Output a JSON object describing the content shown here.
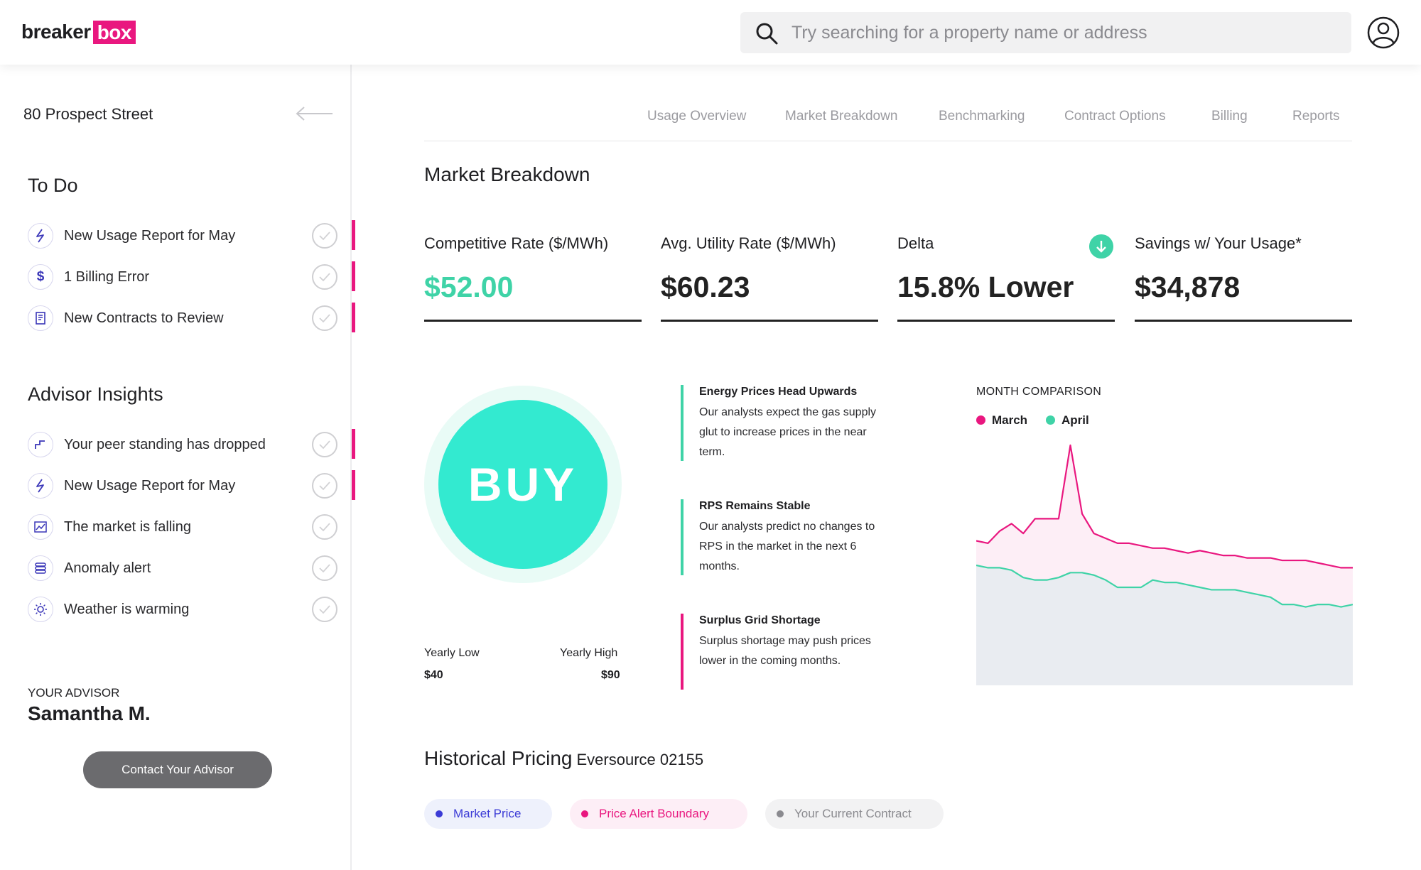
{
  "app": {
    "logo_part1": "breaker",
    "logo_part2": "box",
    "brand_color": "#e9177f"
  },
  "search": {
    "placeholder": "Try searching for a property name or address",
    "value": ""
  },
  "sidebar": {
    "property_name": "80 Prospect Street",
    "todo_title": "To Do",
    "todo_items": [
      {
        "icon": "lightning-icon",
        "label": "New Usage Report for May",
        "flagged": true
      },
      {
        "icon": "dollar-icon",
        "label": "1 Billing Error",
        "flagged": true
      },
      {
        "icon": "document-icon",
        "label": "New Contracts to Review",
        "flagged": true
      }
    ],
    "insights_title": "Advisor Insights",
    "insight_items": [
      {
        "icon": "step-down-icon",
        "label": "Your peer standing has dropped",
        "flagged": true
      },
      {
        "icon": "lightning-icon",
        "label": "New Usage Report for May",
        "flagged": true
      },
      {
        "icon": "chart-icon",
        "label": "The market is falling",
        "flagged": false
      },
      {
        "icon": "stack-icon",
        "label": "Anomaly alert",
        "flagged": false
      },
      {
        "icon": "sun-icon",
        "label": "Weather is warming",
        "flagged": false
      }
    ],
    "advisor_label": "YOUR ADVISOR",
    "advisor_name": "Samantha M.",
    "contact_button": "Contact Your Advisor"
  },
  "tabs": [
    "Usage Overview",
    "Market Breakdown",
    "Benchmarking",
    "Contract Options",
    "Billing",
    "Reports"
  ],
  "market": {
    "title": "Market Breakdown",
    "metrics": [
      {
        "label": "Competitive Rate ($/MWh)",
        "value": "$52.00"
      },
      {
        "label": "Avg. Utility Rate ($/MWh)",
        "value": "$60.23"
      },
      {
        "label": "Delta",
        "value": "15.8% Lower",
        "icon": "arrow-down-icon"
      },
      {
        "label": "Savings w/ Your Usage*",
        "value": "$34,878"
      }
    ],
    "recommendation": "BUY",
    "yearly_low_label": "Yearly Low",
    "yearly_low_value": "$40",
    "yearly_high_label": "Yearly High",
    "yearly_high_value": "$90",
    "insights": [
      {
        "title": "Energy Prices Head Upwards",
        "body": "Our analysts expect the gas supply glut to increase prices in the near term.",
        "color": "#3fd3a7"
      },
      {
        "title": "RPS Remains Stable",
        "body": "Our analysts predict no changes to RPS in the market in the next 6 months.",
        "color": "#3fd3a7"
      },
      {
        "title": "Surplus Grid Shortage",
        "body": "Surplus shortage may push prices lower in the coming months.",
        "color": "#e9177f"
      }
    ]
  },
  "chart_data": {
    "type": "area",
    "title": "MONTH COMPARISON",
    "xlabel": "",
    "ylabel": "",
    "ylim": [
      0,
      100
    ],
    "grid": false,
    "legend": "top-left",
    "x": [
      0,
      1,
      2,
      3,
      4,
      5,
      6,
      7,
      8,
      9,
      10,
      11,
      12,
      13,
      14,
      15,
      16,
      17,
      18,
      19,
      20,
      21,
      22,
      23,
      24,
      25,
      26,
      27,
      28,
      29,
      30,
      31,
      32
    ],
    "series": [
      {
        "name": "March",
        "color": "#e9177f",
        "values": [
          59,
          58,
          63,
          66,
          62,
          68,
          68,
          68,
          98,
          70,
          62,
          60,
          58,
          58,
          57,
          56,
          56,
          55,
          54,
          55,
          54,
          53,
          53,
          52,
          52,
          52,
          51,
          51,
          51,
          50,
          49,
          48,
          48
        ]
      },
      {
        "name": "April",
        "color": "#3fd3a7",
        "values": [
          49,
          48,
          48,
          47,
          44,
          43,
          43,
          44,
          46,
          46,
          45,
          43,
          40,
          40,
          40,
          43,
          42,
          42,
          41,
          40,
          39,
          39,
          39,
          38,
          37,
          36,
          33,
          33,
          32,
          33,
          33,
          32,
          33
        ]
      }
    ]
  },
  "historical": {
    "title": "Historical Pricing",
    "subtitle": "Eversource 02155",
    "legend": [
      {
        "label": "Market Price",
        "color": "#3b3bd6",
        "bg": "#eef1fc"
      },
      {
        "label": "Price Alert Boundary",
        "color": "#e9177f",
        "bg": "#fdeef6"
      },
      {
        "label": "Your Current Contract",
        "color": "#8a8a8f",
        "bg": "#f2f2f3"
      }
    ]
  }
}
